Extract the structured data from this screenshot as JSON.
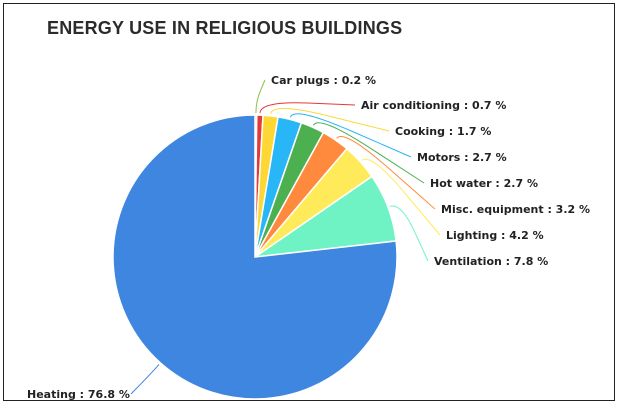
{
  "chart_data": {
    "type": "pie",
    "title": "ENERGY USE IN RELIGIOUS BUILDINGS",
    "slices": [
      {
        "label": "Heating",
        "value": 76.8,
        "text": "Heating : 76.8 %",
        "color": "#3f86e0"
      },
      {
        "label": "Car plugs",
        "value": 0.2,
        "text": "Car plugs : 0.2 %",
        "color": "#8bc34a"
      },
      {
        "label": "Air conditioning",
        "value": 0.7,
        "text": "Air conditioning : 0.7 %",
        "color": "#e53935"
      },
      {
        "label": "Cooking",
        "value": 1.7,
        "text": "Cooking : 1.7 %",
        "color": "#fdd835"
      },
      {
        "label": "Motors",
        "value": 2.7,
        "text": "Motors : 2.7 %",
        "color": "#29b6f6"
      },
      {
        "label": "Hot water",
        "value": 2.7,
        "text": "Hot water : 2.7 %",
        "color": "#4caf50"
      },
      {
        "label": "Misc. equipment",
        "value": 3.2,
        "text": "Misc. equipment : 3.2 %",
        "color": "#ff8a3d"
      },
      {
        "label": "Lighting",
        "value": 4.2,
        "text": "Lighting : 4.2 %",
        "color": "#ffeb5a"
      },
      {
        "label": "Ventilation",
        "value": 7.8,
        "text": "Ventilation : 7.8 %",
        "color": "#6ff2c4"
      }
    ]
  }
}
